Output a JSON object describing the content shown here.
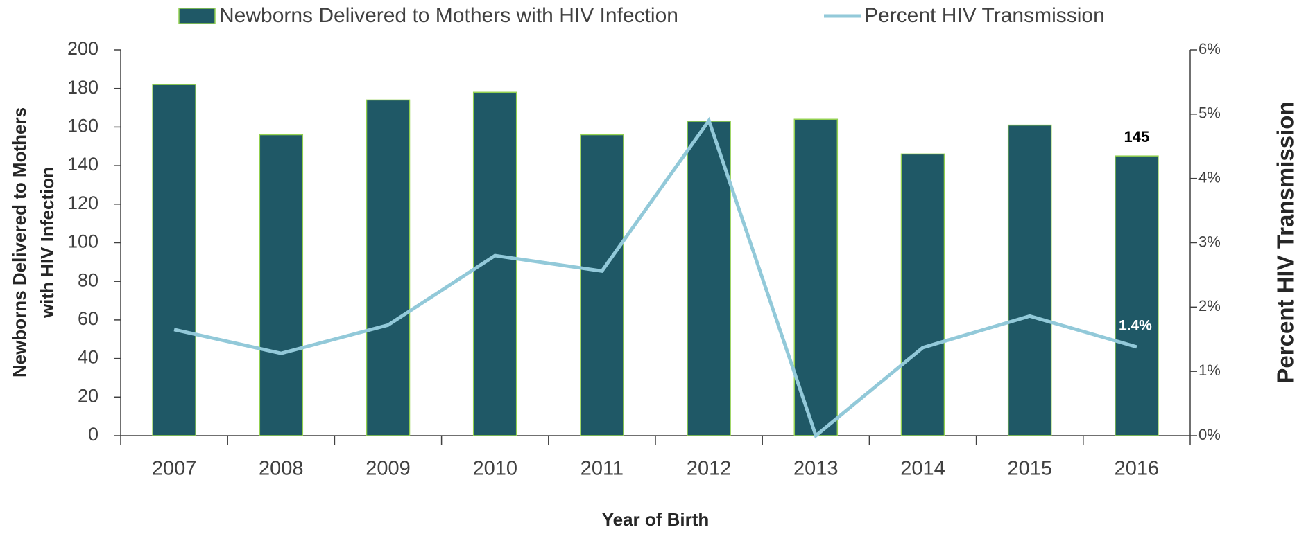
{
  "chart_data": {
    "type": "bar_line",
    "categories": [
      "2007",
      "2008",
      "2009",
      "2010",
      "2011",
      "2012",
      "2013",
      "2014",
      "2015",
      "2016"
    ],
    "series": [
      {
        "name": "Newborns Delivered to Mothers with HIV Infection",
        "type": "bar",
        "color": "#1f5866",
        "edgecolor": "#92d050",
        "values": [
          182,
          156,
          174,
          178,
          156,
          163,
          164,
          146,
          161,
          145
        ],
        "value_labels": [
          null,
          null,
          null,
          null,
          null,
          null,
          null,
          null,
          null,
          "145"
        ]
      },
      {
        "name": "Percent HIV Transmission",
        "type": "line",
        "axis": "y2",
        "color": "#92c9d9",
        "values": [
          1.65,
          1.28,
          1.72,
          2.8,
          2.56,
          4.9,
          0,
          1.37,
          1.86,
          1.38
        ],
        "value_labels": [
          null,
          null,
          null,
          null,
          null,
          null,
          null,
          null,
          null,
          "1.4%"
        ]
      }
    ],
    "xlabel": "Year of Birth",
    "ylabel": [
      "Newborns Delivered to Mothers",
      "with HIV Infection"
    ],
    "y2label": "Percent HIV Transmission",
    "ylim": [
      0,
      200
    ],
    "yticks": [
      0,
      20,
      40,
      60,
      80,
      100,
      120,
      140,
      160,
      180,
      200
    ],
    "y2lim": [
      0,
      6
    ],
    "y2ticks": [
      {
        "value": 0,
        "label": "0%"
      },
      {
        "value": 1,
        "label": "1%"
      },
      {
        "value": 2,
        "label": "2%"
      },
      {
        "value": 3,
        "label": "3%"
      },
      {
        "value": 4,
        "label": "4%"
      },
      {
        "value": 5,
        "label": "5%"
      },
      {
        "value": 6,
        "label": "6%"
      }
    ],
    "legend": "top"
  }
}
